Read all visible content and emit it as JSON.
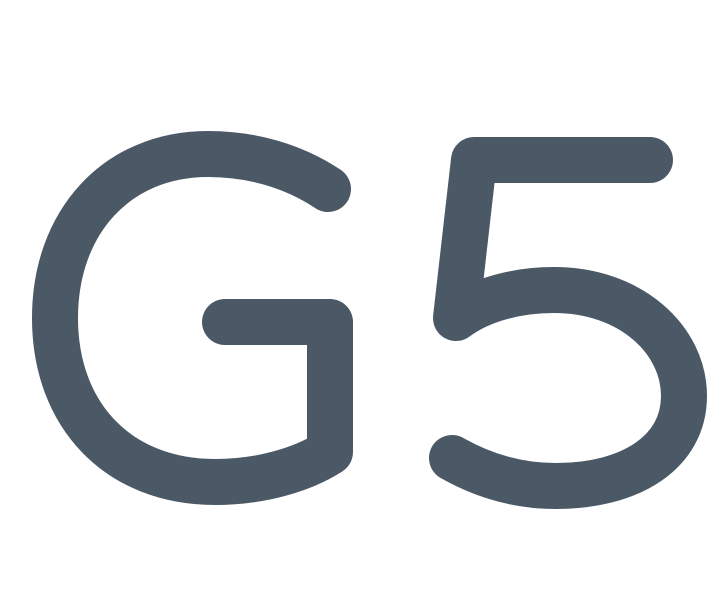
{
  "logo": {
    "text": "G5",
    "color": "#4b5866",
    "background": "#ffffff"
  }
}
